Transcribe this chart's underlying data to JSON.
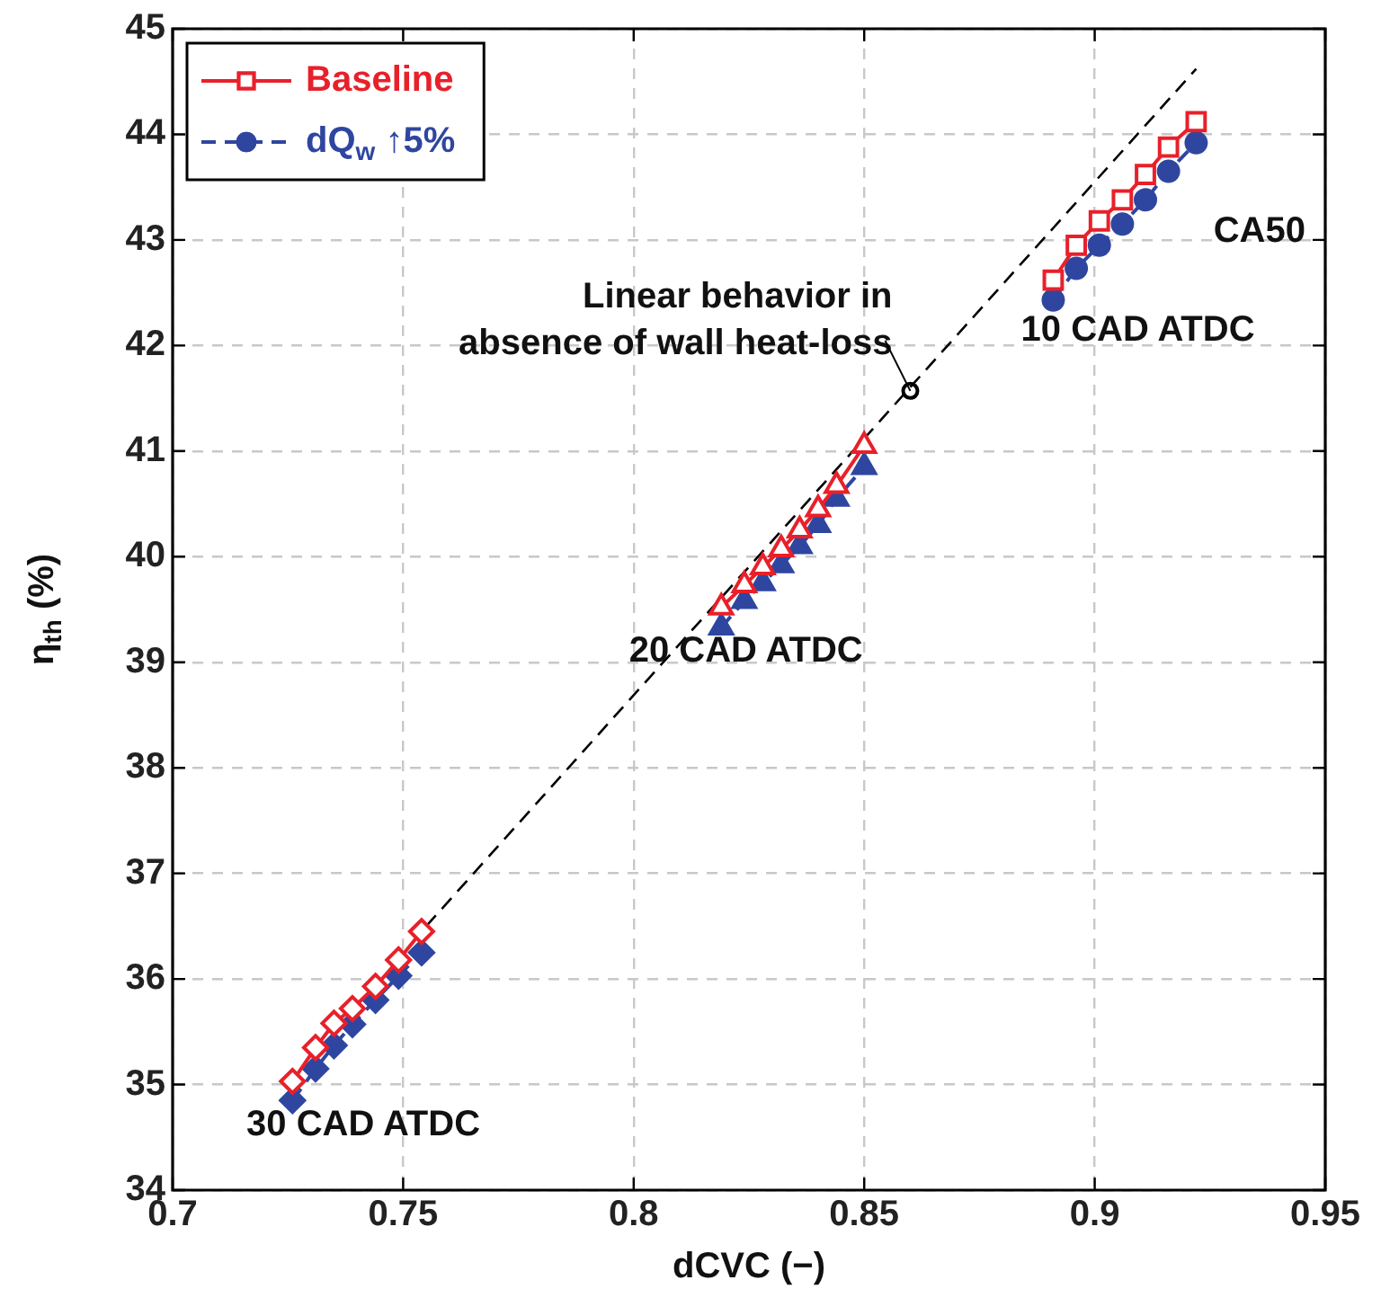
{
  "chart_data": {
    "type": "scatter",
    "xlabel": "dCVC (−)",
    "ylabel": "η$_{th}$ (%)",
    "xlim": [
      0.7,
      0.95
    ],
    "xticks": [
      0.7,
      0.75,
      0.8,
      0.85,
      0.9,
      0.95
    ],
    "ylim": [
      34,
      45
    ],
    "yticks": [
      34,
      35,
      36,
      37,
      38,
      39,
      40,
      41,
      42,
      43,
      44,
      45
    ],
    "grid": true,
    "legend": "top left",
    "series": [
      {
        "name": "Baseline",
        "type": "line",
        "color": "#e8202a",
        "marker": "square",
        "line_style": "solid",
        "x": [
          0.891,
          0.896,
          0.901,
          0.906,
          0.911,
          0.916,
          0.922
        ],
        "values": [
          42.62,
          42.95,
          43.18,
          43.38,
          43.62,
          43.88,
          44.12
        ]
      },
      {
        "name": "dQ$_{w}$ ↑5%",
        "type": "line",
        "color": "#2f46a0",
        "marker": "circle",
        "line_style": "dashed",
        "x": [
          0.891,
          0.896,
          0.901,
          0.906,
          0.911,
          0.916,
          0.922
        ],
        "values": [
          42.43,
          42.73,
          42.95,
          43.15,
          43.38,
          43.65,
          43.92
        ]
      },
      {
        "type": "line",
        "color": "#e8202a",
        "marker": "triangle",
        "line_style": "solid",
        "x": [
          0.819,
          0.824,
          0.828,
          0.832,
          0.836,
          0.84,
          0.844,
          0.85
        ],
        "values": [
          39.52,
          39.73,
          39.9,
          40.07,
          40.25,
          40.45,
          40.67,
          41.05
        ]
      },
      {
        "type": "line",
        "color": "#2f46a0",
        "marker": "triangle",
        "line_style": "dashed",
        "x": [
          0.819,
          0.824,
          0.828,
          0.832,
          0.836,
          0.84,
          0.844,
          0.85
        ],
        "values": [
          39.33,
          39.58,
          39.75,
          39.92,
          40.1,
          40.3,
          40.55,
          40.85
        ]
      },
      {
        "type": "line",
        "color": "#e8202a",
        "marker": "diamond",
        "line_style": "solid",
        "x": [
          0.726,
          0.731,
          0.735,
          0.739,
          0.744,
          0.749,
          0.754
        ],
        "values": [
          35.03,
          35.35,
          35.58,
          35.72,
          35.93,
          36.18,
          36.45
        ]
      },
      {
        "type": "line",
        "color": "#2f46a0",
        "marker": "diamond",
        "line_style": "dashed",
        "x": [
          0.726,
          0.731,
          0.735,
          0.739,
          0.744,
          0.749,
          0.754
        ],
        "values": [
          34.85,
          35.15,
          35.37,
          35.57,
          35.8,
          36.03,
          36.25
        ]
      },
      {
        "type": "line",
        "color": "#000000",
        "marker": "none",
        "line_style": "dashed",
        "x": [
          0.755,
          0.922
        ],
        "values": [
          36.5,
          44.62
        ]
      },
      {
        "type": "scatter",
        "color": "#000000",
        "marker": "circle",
        "x": [
          0.86
        ],
        "values": [
          41.57
        ]
      }
    ],
    "annotations": [
      {
        "text": "Linear behavior in\nabsence of wall heat-loss",
        "x": 0.86,
        "y": 41.57
      },
      "CA50",
      "10 CAD ATDC",
      "20 CAD ATDC",
      "30 CAD ATDC"
    ]
  }
}
